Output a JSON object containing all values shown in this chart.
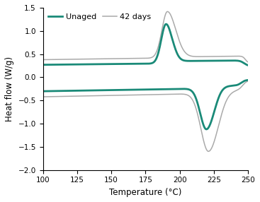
{
  "xlabel": "Temperature (°C)",
  "ylabel": "Heat flow (W/g)",
  "xlim": [
    100,
    250
  ],
  "ylim": [
    -2,
    1.5
  ],
  "xticks": [
    100,
    125,
    150,
    175,
    200,
    225,
    250
  ],
  "yticks": [
    -2,
    -1.5,
    -1,
    -0.5,
    0,
    0.5,
    1,
    1.5
  ],
  "legend_labels": [
    "Unaged",
    "42 days"
  ],
  "unaged_color": "#1a8a78",
  "aged_color": "#aaaaaa",
  "unaged_lw": 2.0,
  "aged_lw": 1.1,
  "background_color": "#ffffff",
  "figsize": [
    3.67,
    2.86
  ],
  "dpi": 100
}
